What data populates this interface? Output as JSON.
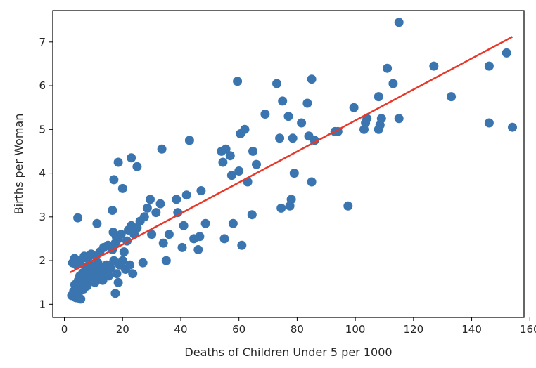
{
  "chart_data": {
    "type": "scatter",
    "title": "",
    "xlabel": "Deaths of Children Under 5 per 1000",
    "ylabel": "Births per Woman",
    "xlim": [
      -4,
      158
    ],
    "ylim": [
      0.7,
      7.72
    ],
    "xticks": [
      0,
      20,
      40,
      60,
      80,
      100,
      120,
      140,
      160
    ],
    "yticks": [
      1,
      2,
      3,
      4,
      5,
      6,
      7
    ],
    "grid": false,
    "legend": "none",
    "colors": {
      "points": "#3a75b0",
      "fit_line": "#e8382a",
      "frame": "#000000"
    },
    "fit_line": {
      "x": [
        2.0,
        154.0
      ],
      "y": [
        1.73,
        7.12
      ]
    },
    "series": [
      {
        "points": [
          [
            2.5,
            1.2
          ],
          [
            3.2,
            1.3
          ],
          [
            3.6,
            1.45
          ],
          [
            4.0,
            1.15
          ],
          [
            4.4,
            1.38
          ],
          [
            4.8,
            1.55
          ],
          [
            5.0,
            1.28
          ],
          [
            5.3,
            1.65
          ],
          [
            5.6,
            1.12
          ],
          [
            5.9,
            1.48
          ],
          [
            6.3,
            1.72
          ],
          [
            6.6,
            1.35
          ],
          [
            7.0,
            1.58
          ],
          [
            7.4,
            1.85
          ],
          [
            7.8,
            1.42
          ],
          [
            8.2,
            1.68
          ],
          [
            8.6,
            1.52
          ],
          [
            9.0,
            1.9
          ],
          [
            9.5,
            1.62
          ],
          [
            10.0,
            1.8
          ],
          [
            10.5,
            1.5
          ],
          [
            11.0,
            1.75
          ],
          [
            11.5,
            1.95
          ],
          [
            12.0,
            1.6
          ],
          [
            12.6,
            1.85
          ],
          [
            13.2,
            1.55
          ],
          [
            13.8,
            1.72
          ],
          [
            14.5,
            1.9
          ],
          [
            15.2,
            1.65
          ],
          [
            16.0,
            1.82
          ],
          [
            17.0,
            2.0
          ],
          [
            18.0,
            1.7
          ],
          [
            19.0,
            1.9
          ],
          [
            2.8,
            1.95
          ],
          [
            3.5,
            2.05
          ],
          [
            4.2,
            1.9
          ],
          [
            5.5,
            2.0
          ],
          [
            6.8,
            2.1
          ],
          [
            8.0,
            2.05
          ],
          [
            9.2,
            2.15
          ],
          [
            10.8,
            2.1
          ],
          [
            12.2,
            2.2
          ],
          [
            13.5,
            2.3
          ],
          [
            15.0,
            2.35
          ],
          [
            16.5,
            2.25
          ],
          [
            17.5,
            2.4
          ],
          [
            18.5,
            2.5
          ],
          [
            19.5,
            2.6
          ],
          [
            20.5,
            2.2
          ],
          [
            21.5,
            2.45
          ],
          [
            22.0,
            2.7
          ],
          [
            23.0,
            2.8
          ],
          [
            24.0,
            2.6
          ],
          [
            25.0,
            2.75
          ],
          [
            26.0,
            2.9
          ],
          [
            27.5,
            3.0
          ],
          [
            28.5,
            3.2
          ],
          [
            29.5,
            3.4
          ],
          [
            16.8,
            2.65
          ],
          [
            17.8,
            2.55
          ],
          [
            4.6,
            2.98
          ],
          [
            11.2,
            2.85
          ],
          [
            16.5,
            3.15
          ],
          [
            17.5,
            1.25
          ],
          [
            21.0,
            1.8
          ],
          [
            22.5,
            1.9
          ],
          [
            23.5,
            1.7
          ],
          [
            18.5,
            1.5
          ],
          [
            20.0,
            2.0
          ],
          [
            17.0,
            3.85
          ],
          [
            18.5,
            4.25
          ],
          [
            20.0,
            3.65
          ],
          [
            23.0,
            4.35
          ],
          [
            25.0,
            4.15
          ],
          [
            27.0,
            1.95
          ],
          [
            30.0,
            2.6
          ],
          [
            31.5,
            3.1
          ],
          [
            33.0,
            3.3
          ],
          [
            33.5,
            4.55
          ],
          [
            34.0,
            2.4
          ],
          [
            35.0,
            2.0
          ],
          [
            36.0,
            2.6
          ],
          [
            38.5,
            3.4
          ],
          [
            39.0,
            3.1
          ],
          [
            40.5,
            2.3
          ],
          [
            41.0,
            2.8
          ],
          [
            42.0,
            3.5
          ],
          [
            43.0,
            4.75
          ],
          [
            44.5,
            2.5
          ],
          [
            46.0,
            2.25
          ],
          [
            46.5,
            2.55
          ],
          [
            47.0,
            3.6
          ],
          [
            48.5,
            2.85
          ],
          [
            54.0,
            4.5
          ],
          [
            54.5,
            4.25
          ],
          [
            55.0,
            2.5
          ],
          [
            55.5,
            4.55
          ],
          [
            57.0,
            4.4
          ],
          [
            57.5,
            3.95
          ],
          [
            58.0,
            2.85
          ],
          [
            59.5,
            6.1
          ],
          [
            60.0,
            4.05
          ],
          [
            60.5,
            4.9
          ],
          [
            61.0,
            2.35
          ],
          [
            62.0,
            5.0
          ],
          [
            63.0,
            3.8
          ],
          [
            64.5,
            3.05
          ],
          [
            64.8,
            4.5
          ],
          [
            66.0,
            4.2
          ],
          [
            69.0,
            5.35
          ],
          [
            73.0,
            6.05
          ],
          [
            74.0,
            4.8
          ],
          [
            74.5,
            3.2
          ],
          [
            75.0,
            5.65
          ],
          [
            77.0,
            5.3
          ],
          [
            77.5,
            3.25
          ],
          [
            78.0,
            3.4
          ],
          [
            78.5,
            4.8
          ],
          [
            79.0,
            4.0
          ],
          [
            81.5,
            5.15
          ],
          [
            83.5,
            5.6
          ],
          [
            84.0,
            4.85
          ],
          [
            85.0,
            6.15
          ],
          [
            85.0,
            3.8
          ],
          [
            86.0,
            4.75
          ],
          [
            93.0,
            4.95
          ],
          [
            94.0,
            4.95
          ],
          [
            97.5,
            3.25
          ],
          [
            99.5,
            5.5
          ],
          [
            103.0,
            5.0
          ],
          [
            103.5,
            5.15
          ],
          [
            104.0,
            5.25
          ],
          [
            108.0,
            5.75
          ],
          [
            108.0,
            5.0
          ],
          [
            108.5,
            5.1
          ],
          [
            109.0,
            5.25
          ],
          [
            111.0,
            6.4
          ],
          [
            113.0,
            6.05
          ],
          [
            115.0,
            7.45
          ],
          [
            115.0,
            5.25
          ],
          [
            127.0,
            6.45
          ],
          [
            133.0,
            5.75
          ],
          [
            146.0,
            6.45
          ],
          [
            146.0,
            5.15
          ],
          [
            152.0,
            6.75
          ],
          [
            154.0,
            5.05
          ]
        ]
      }
    ]
  }
}
